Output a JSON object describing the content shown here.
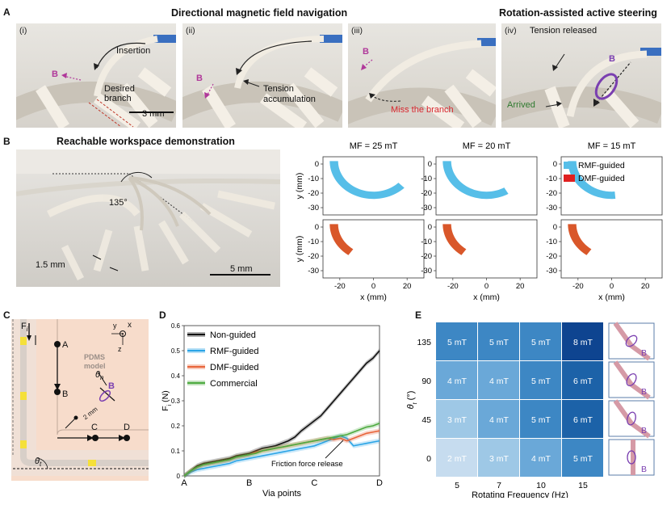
{
  "panel_a": {
    "letter": "A",
    "title_left": "Directional magnetic field navigation",
    "title_right": "Rotation-assisted active steering",
    "sub_i": "(i)",
    "sub_ii": "(ii)",
    "sub_iii": "(iii)",
    "sub_iv": "(iv)",
    "insertion": "Insertion",
    "b_label": "B",
    "desired_branch": "Desired\nbranch",
    "scale": "3 mm",
    "tension_accum": "Tension\naccumulation",
    "miss_branch": "Miss the branch",
    "tension_released": "Tension released",
    "arrived": "Arrived"
  },
  "panel_b": {
    "letter": "B",
    "title": "Reachable workspace demonstration",
    "angle": "135°",
    "diameter": "1.5 mm",
    "scale": "5 mm",
    "mf_titles": [
      "MF = 25 mT",
      "MF = 20 mT",
      "MF = 15 mT"
    ],
    "ylabel": "y (mm)",
    "xlabel": "x (mm)",
    "legend": [
      "RMF-guided",
      "DMF-guided"
    ]
  },
  "panel_c": {
    "letter": "C",
    "fi": "F",
    "fi_sub": "i",
    "model": "PDMS\nmodel",
    "axes": {
      "y": "y",
      "x": "x",
      "z": "z"
    },
    "points": [
      "A",
      "B",
      "C",
      "D"
    ],
    "theta_n": "θ",
    "theta_n_sub": "n",
    "b": "B",
    "dist": "2 mm",
    "theta_t": "θ",
    "theta_t_sub": "t"
  },
  "colors": {
    "rmf": "#56BEE8",
    "dmf": "#D9572A",
    "nonguided": "#111111",
    "commercial": "#4DAA3F",
    "dmf_line": "#E8643A",
    "rmf_line": "#2AA4E6",
    "magenta": "#B0389A",
    "purple": "#7A3FB0"
  },
  "chart_data": [
    {
      "id": "D",
      "letter": "D",
      "type": "line",
      "xlabel": "Via points",
      "ylabel": "F",
      "ylabel_sub": "i",
      "ylabel_unit": " (N)",
      "x_ticks": [
        "A",
        "B",
        "C",
        "D"
      ],
      "ylim": [
        0,
        0.6
      ],
      "y_ticks": [
        0,
        0.1,
        0.2,
        0.3,
        0.4,
        0.5,
        0.6
      ],
      "legend_placement": "top-left",
      "annotation": "Friction force release",
      "series": [
        {
          "name": "Non-guided",
          "color": "#111111",
          "x": [
            0,
            0.1,
            0.2,
            0.3,
            0.4,
            0.5,
            0.6,
            0.7,
            0.8,
            0.9,
            1.0,
            1.1,
            1.2,
            1.3,
            1.4,
            1.5,
            1.6,
            1.7,
            1.8,
            1.9,
            2.0,
            2.1,
            2.2,
            2.3,
            2.4,
            2.5,
            2.6,
            2.7,
            2.8,
            2.9,
            3.0
          ],
          "y": [
            0.0,
            0.02,
            0.04,
            0.05,
            0.055,
            0.06,
            0.065,
            0.07,
            0.08,
            0.085,
            0.09,
            0.1,
            0.11,
            0.115,
            0.12,
            0.13,
            0.14,
            0.155,
            0.18,
            0.2,
            0.22,
            0.24,
            0.27,
            0.3,
            0.33,
            0.36,
            0.39,
            0.42,
            0.45,
            0.47,
            0.5
          ]
        },
        {
          "name": "RMF-guided",
          "color": "#2AA4E6",
          "x": [
            0,
            0.1,
            0.2,
            0.3,
            0.4,
            0.5,
            0.6,
            0.7,
            0.8,
            0.9,
            1.0,
            1.1,
            1.2,
            1.3,
            1.4,
            1.5,
            1.6,
            1.7,
            1.8,
            1.9,
            2.0,
            2.1,
            2.2,
            2.3,
            2.4,
            2.5,
            2.6,
            2.7,
            2.8,
            2.9,
            3.0
          ],
          "y": [
            0.0,
            0.015,
            0.025,
            0.03,
            0.035,
            0.04,
            0.045,
            0.05,
            0.06,
            0.065,
            0.07,
            0.075,
            0.08,
            0.085,
            0.09,
            0.095,
            0.1,
            0.105,
            0.11,
            0.115,
            0.12,
            0.13,
            0.14,
            0.15,
            0.16,
            0.15,
            0.12,
            0.125,
            0.13,
            0.135,
            0.14
          ]
        },
        {
          "name": "DMF-guided",
          "color": "#E8643A",
          "x": [
            0,
            0.1,
            0.2,
            0.3,
            0.4,
            0.5,
            0.6,
            0.7,
            0.8,
            0.9,
            1.0,
            1.1,
            1.2,
            1.3,
            1.4,
            1.5,
            1.6,
            1.7,
            1.8,
            1.9,
            2.0,
            2.1,
            2.2,
            2.3,
            2.4,
            2.5,
            2.6,
            2.7,
            2.8,
            2.9,
            3.0
          ],
          "y": [
            0.0,
            0.02,
            0.035,
            0.045,
            0.05,
            0.055,
            0.06,
            0.065,
            0.075,
            0.08,
            0.085,
            0.095,
            0.1,
            0.105,
            0.11,
            0.115,
            0.12,
            0.125,
            0.13,
            0.135,
            0.14,
            0.145,
            0.15,
            0.145,
            0.15,
            0.14,
            0.15,
            0.16,
            0.17,
            0.175,
            0.18
          ]
        },
        {
          "name": "Commercial",
          "color": "#4DAA3F",
          "x": [
            0,
            0.1,
            0.2,
            0.3,
            0.4,
            0.5,
            0.6,
            0.7,
            0.8,
            0.9,
            1.0,
            1.1,
            1.2,
            1.3,
            1.4,
            1.5,
            1.6,
            1.7,
            1.8,
            1.9,
            2.0,
            2.1,
            2.2,
            2.3,
            2.4,
            2.5,
            2.6,
            2.7,
            2.8,
            2.9,
            3.0
          ],
          "y": [
            0.0,
            0.02,
            0.035,
            0.045,
            0.05,
            0.055,
            0.06,
            0.065,
            0.075,
            0.08,
            0.085,
            0.09,
            0.1,
            0.105,
            0.11,
            0.115,
            0.12,
            0.125,
            0.13,
            0.135,
            0.14,
            0.145,
            0.15,
            0.155,
            0.16,
            0.165,
            0.175,
            0.185,
            0.195,
            0.2,
            0.21
          ]
        }
      ]
    },
    {
      "id": "E",
      "letter": "E",
      "type": "heatmap",
      "xlabel": "Rotating Frequency (Hz)",
      "ylabel": "θ",
      "ylabel_sub": "t",
      "ylabel_unit": " (°)",
      "x": [
        "5",
        "7",
        "10",
        "15"
      ],
      "y": [
        "135",
        "90",
        "45",
        "0"
      ],
      "values": [
        [
          5,
          5,
          5,
          8
        ],
        [
          4,
          4,
          5,
          6
        ],
        [
          3,
          4,
          5,
          6
        ],
        [
          2,
          3,
          4,
          5
        ]
      ],
      "labels": [
        [
          "5 mT",
          "5 mT",
          "5 mT",
          "8 mT"
        ],
        [
          "4 mT",
          "4 mT",
          "5 mT",
          "6 mT"
        ],
        [
          "3 mT",
          "4 mT",
          "5 mT",
          "6 mT"
        ],
        [
          "2 mT",
          "3 mT",
          "4 mT",
          "5 mT"
        ]
      ],
      "inset_label": "B"
    },
    {
      "id": "B-plots",
      "type": "area",
      "xlim": [
        -30,
        30
      ],
      "ylim": [
        -35,
        5
      ],
      "x_ticks": [
        "-20",
        "0",
        "20"
      ],
      "y_ticks": [
        "0",
        "-10",
        "-20",
        "-30"
      ],
      "rmf_sweep_deg": [
        135,
        120,
        95
      ],
      "dmf_sweep_deg": [
        55,
        55,
        55
      ]
    }
  ]
}
